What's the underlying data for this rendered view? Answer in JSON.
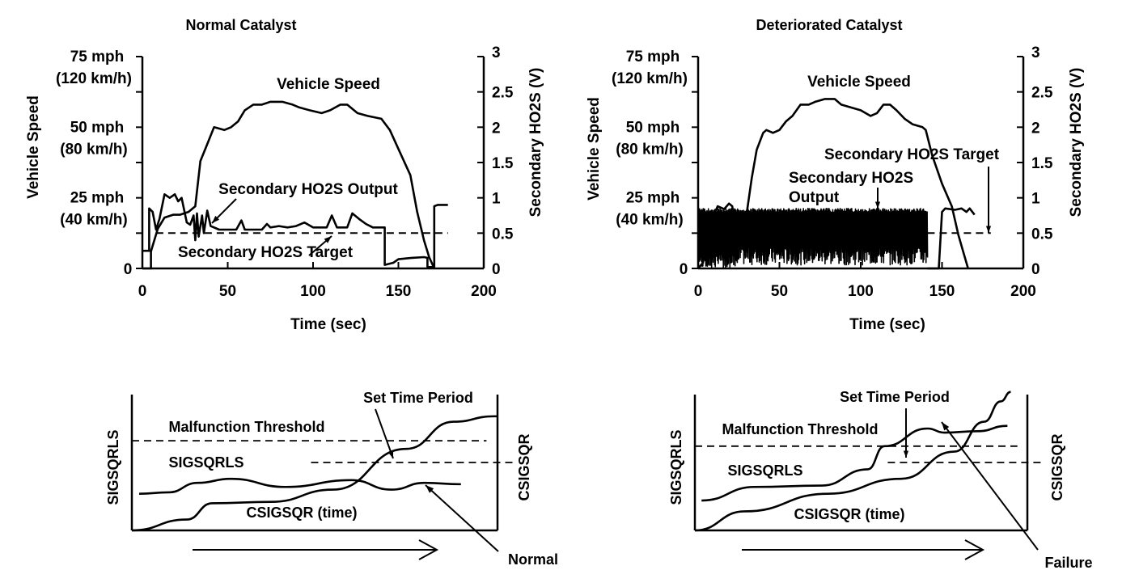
{
  "chart_data": [
    {
      "type": "line",
      "title": "Normal Catalyst",
      "xlabel": "Time (sec)",
      "ylabel": "Vehicle Speed",
      "y2label": "Secondary HO2S (V)",
      "xlim": [
        0,
        200
      ],
      "ylim_speed_mph": [
        0,
        75
      ],
      "ylim_voltage": [
        0,
        3
      ],
      "x_ticks": [
        "0",
        "50",
        "100",
        "150",
        "200"
      ],
      "y_ticks_left": [
        {
          "value": 75,
          "label": "75 mph",
          "sub": "(120 km/h)"
        },
        {
          "value": 50,
          "label": "50 mph",
          "sub": "(80 km/h)"
        },
        {
          "value": 25,
          "label": "25 mph",
          "sub": "(40 km/h)"
        },
        {
          "value": 0,
          "label": "0",
          "sub": ""
        }
      ],
      "y_ticks_right": [
        "3",
        "2.5",
        "2",
        "1.5",
        "1",
        "0.5",
        "0"
      ],
      "annotations": [
        "Vehicle Speed",
        "Secondary HO2S Output",
        "Secondary HO2S Target"
      ],
      "series": [
        {
          "name": "Vehicle Speed",
          "unit": "mph",
          "points": [
            [
              0,
              0
            ],
            [
              5,
              0
            ],
            [
              5,
              6
            ],
            [
              9,
              14
            ],
            [
              13,
              18
            ],
            [
              18,
              19
            ],
            [
              22,
              19
            ],
            [
              27,
              20
            ],
            [
              31,
              22
            ],
            [
              34,
              38
            ],
            [
              38,
              44
            ],
            [
              42,
              50
            ],
            [
              48,
              49
            ],
            [
              52,
              50
            ],
            [
              56,
              52
            ],
            [
              60,
              56
            ],
            [
              65,
              58
            ],
            [
              70,
              58
            ],
            [
              75,
              59
            ],
            [
              82,
              59
            ],
            [
              88,
              58
            ],
            [
              92,
              57
            ],
            [
              98,
              56
            ],
            [
              105,
              55
            ],
            [
              110,
              56
            ],
            [
              116,
              58
            ],
            [
              120,
              58
            ],
            [
              126,
              55
            ],
            [
              132,
              54
            ],
            [
              140,
              53
            ],
            [
              145,
              49
            ],
            [
              151,
              41
            ],
            [
              157,
              33
            ],
            [
              161,
              20
            ],
            [
              165,
              10
            ],
            [
              168,
              4
            ],
            [
              171,
              0
            ]
          ]
        },
        {
          "name": "Secondary HO2S Output",
          "unit": "V",
          "points": [
            [
              0,
              0.25
            ],
            [
              4,
              0.25
            ],
            [
              4,
              0.85
            ],
            [
              6,
              0.8
            ],
            [
              8,
              0.55
            ],
            [
              10,
              0.7
            ],
            [
              13,
              1.05
            ],
            [
              16,
              1.0
            ],
            [
              19,
              1.05
            ],
            [
              21,
              0.95
            ],
            [
              23,
              1.0
            ],
            [
              26,
              0.65
            ],
            [
              28,
              0.62
            ],
            [
              30,
              0.75
            ],
            [
              31,
              0.4
            ],
            [
              32,
              0.78
            ],
            [
              33,
              0.45
            ],
            [
              35,
              0.75
            ],
            [
              36,
              0.5
            ],
            [
              38,
              0.82
            ],
            [
              40,
              0.6
            ],
            [
              45,
              0.55
            ],
            [
              55,
              0.55
            ],
            [
              58,
              0.68
            ],
            [
              60,
              0.55
            ],
            [
              70,
              0.55
            ],
            [
              73,
              0.63
            ],
            [
              75,
              0.58
            ],
            [
              80,
              0.6
            ],
            [
              85,
              0.58
            ],
            [
              90,
              0.6
            ],
            [
              95,
              0.65
            ],
            [
              100,
              0.58
            ],
            [
              108,
              0.58
            ],
            [
              111,
              0.75
            ],
            [
              114,
              0.58
            ],
            [
              120,
              0.58
            ],
            [
              123,
              0.78
            ],
            [
              127,
              0.7
            ],
            [
              131,
              0.63
            ],
            [
              135,
              0.58
            ],
            [
              140,
              0.58
            ],
            [
              142,
              0.58
            ],
            [
              142,
              0.05
            ],
            [
              147,
              0.08
            ],
            [
              150,
              0.13
            ],
            [
              158,
              0.15
            ],
            [
              165,
              0.16
            ],
            [
              167,
              0.15
            ],
            [
              167,
              0.02
            ],
            [
              171,
              0.02
            ],
            [
              171,
              0.88
            ],
            [
              173,
              0.9
            ],
            [
              179,
              0.9
            ]
          ]
        },
        {
          "name": "Secondary HO2S Target",
          "unit": "V",
          "style": "dashed",
          "points": [
            [
              8,
              0.5
            ],
            [
              179,
              0.5
            ]
          ]
        }
      ]
    },
    {
      "type": "line",
      "title": "Deteriorated Catalyst",
      "xlabel": "Time (sec)",
      "ylabel": "Vehicle Speed",
      "y2label": "Secondary HO2S (V)",
      "xlim": [
        0,
        200
      ],
      "ylim_speed_mph": [
        0,
        75
      ],
      "ylim_voltage": [
        0,
        3
      ],
      "x_ticks": [
        "0",
        "50",
        "100",
        "150",
        "200"
      ],
      "y_ticks_left": [
        {
          "value": 75,
          "label": "75 mph",
          "sub": "(120 km/h)"
        },
        {
          "value": 50,
          "label": "50 mph",
          "sub": "(80 km/h)"
        },
        {
          "value": 25,
          "label": "25 mph",
          "sub": "(40 km/h)"
        },
        {
          "value": 0,
          "label": "0",
          "sub": ""
        }
      ],
      "y_ticks_right": [
        "3",
        "2.5",
        "2",
        "1.5",
        "1",
        "0.5",
        "0"
      ],
      "annotations": [
        "Vehicle Speed",
        "Secondary HO2S Target",
        "Secondary HO2S Output"
      ],
      "series": [
        {
          "name": "Vehicle Speed",
          "unit": "mph",
          "points": [
            [
              0,
              0
            ],
            [
              3,
              2
            ],
            [
              6,
              12
            ],
            [
              9,
              18
            ],
            [
              12,
              22
            ],
            [
              16,
              21
            ],
            [
              19,
              23
            ],
            [
              21,
              22
            ],
            [
              23,
              15
            ],
            [
              25,
              8
            ],
            [
              27,
              7
            ],
            [
              30,
              20
            ],
            [
              33,
              32
            ],
            [
              36,
              42
            ],
            [
              40,
              48
            ],
            [
              42,
              49
            ],
            [
              46,
              48
            ],
            [
              50,
              49
            ],
            [
              54,
              52
            ],
            [
              58,
              54
            ],
            [
              63,
              58
            ],
            [
              68,
              58
            ],
            [
              72,
              59
            ],
            [
              78,
              60
            ],
            [
              84,
              60
            ],
            [
              88,
              58
            ],
            [
              94,
              57
            ],
            [
              100,
              56
            ],
            [
              106,
              54
            ],
            [
              110,
              55
            ],
            [
              114,
              58
            ],
            [
              118,
              58
            ],
            [
              122,
              56
            ],
            [
              127,
              53
            ],
            [
              132,
              51
            ],
            [
              138,
              50
            ],
            [
              140,
              49
            ],
            [
              144,
              40
            ],
            [
              150,
              30
            ],
            [
              156,
              22
            ],
            [
              160,
              12
            ],
            [
              163,
              6
            ],
            [
              166,
              0
            ]
          ]
        },
        {
          "name": "Secondary HO2S Output",
          "unit": "V",
          "style": "rapid-switching",
          "range_V": [
            0.05,
            0.85
          ],
          "switching_interval_sec": [
            0,
            141
          ],
          "after_points": [
            [
              141,
              0.0
            ],
            [
              148,
              0.0
            ],
            [
              150,
              0.8
            ],
            [
              152,
              0.85
            ],
            [
              158,
              0.83
            ],
            [
              162,
              0.85
            ],
            [
              165,
              0.8
            ],
            [
              167,
              0.85
            ],
            [
              170,
              0.76
            ]
          ]
        },
        {
          "name": "Secondary HO2S Target",
          "unit": "V",
          "style": "dashed",
          "points": [
            [
              141,
              0.5
            ],
            [
              180,
              0.5
            ]
          ]
        }
      ]
    },
    {
      "type": "line",
      "title": "",
      "xlabel": "time (arrow)",
      "ylabel": "SIGSQRLS",
      "y2label": "CSIGSQR",
      "annotations": [
        "Set Time Period",
        "Malfunction Threshold",
        "SIGSQRLS",
        "CSIGSQR (time)",
        "Normal"
      ],
      "series": [
        {
          "name": "SIGSQRLS",
          "points": [
            [
              0.02,
              0.27
            ],
            [
              0.1,
              0.28
            ],
            [
              0.18,
              0.35
            ],
            [
              0.27,
              0.38
            ],
            [
              0.42,
              0.32
            ],
            [
              0.6,
              0.37
            ],
            [
              0.71,
              0.3
            ],
            [
              0.8,
              0.35
            ],
            [
              0.9,
              0.34
            ]
          ]
        },
        {
          "name": "CSIGSQR (time)",
          "points": [
            [
              0,
              0
            ],
            [
              0.15,
              0.08
            ],
            [
              0.22,
              0.2
            ],
            [
              0.38,
              0.21
            ],
            [
              0.55,
              0.3
            ],
            [
              0.75,
              0.6
            ],
            [
              0.88,
              0.8
            ],
            [
              0.99,
              0.84
            ],
            [
              1,
              0.84
            ]
          ]
        },
        {
          "name": "Malfunction Threshold",
          "style": "dashed",
          "points": [
            [
              0,
              0.66
            ],
            [
              0.97,
              0.66
            ]
          ]
        },
        {
          "name": "CSIGSQR threshold",
          "style": "dashed",
          "points": [
            [
              0.49,
              0.5
            ],
            [
              1.05,
              0.5
            ]
          ]
        }
      ]
    },
    {
      "type": "line",
      "title": "",
      "xlabel": "time (arrow)",
      "ylabel": "SIGSQRLS",
      "y2label": "CSIGSQR",
      "annotations": [
        "Set Time Period",
        "Malfunction Threshold",
        "SIGSQRLS",
        "CSIGSQR (time)",
        "Failure"
      ],
      "series": [
        {
          "name": "SIGSQRLS",
          "points": [
            [
              0.02,
              0.22
            ],
            [
              0.18,
              0.32
            ],
            [
              0.38,
              0.33
            ],
            [
              0.52,
              0.45
            ],
            [
              0.57,
              0.62
            ],
            [
              0.7,
              0.75
            ],
            [
              0.75,
              0.72
            ],
            [
              0.85,
              0.73
            ],
            [
              0.94,
              0.77
            ]
          ]
        },
        {
          "name": "CSIGSQR (time)",
          "points": [
            [
              0,
              0
            ],
            [
              0.15,
              0.14
            ],
            [
              0.4,
              0.27
            ],
            [
              0.62,
              0.38
            ],
            [
              0.78,
              0.58
            ],
            [
              0.87,
              0.8
            ],
            [
              0.92,
              0.95
            ],
            [
              0.95,
              1.02
            ]
          ]
        },
        {
          "name": "Malfunction Threshold",
          "style": "dashed",
          "points": [
            [
              0,
              0.62
            ],
            [
              0.97,
              0.62
            ]
          ]
        },
        {
          "name": "CSIGSQR threshold",
          "style": "dashed",
          "points": [
            [
              0.58,
              0.5
            ],
            [
              1.05,
              0.5
            ]
          ]
        }
      ]
    }
  ]
}
